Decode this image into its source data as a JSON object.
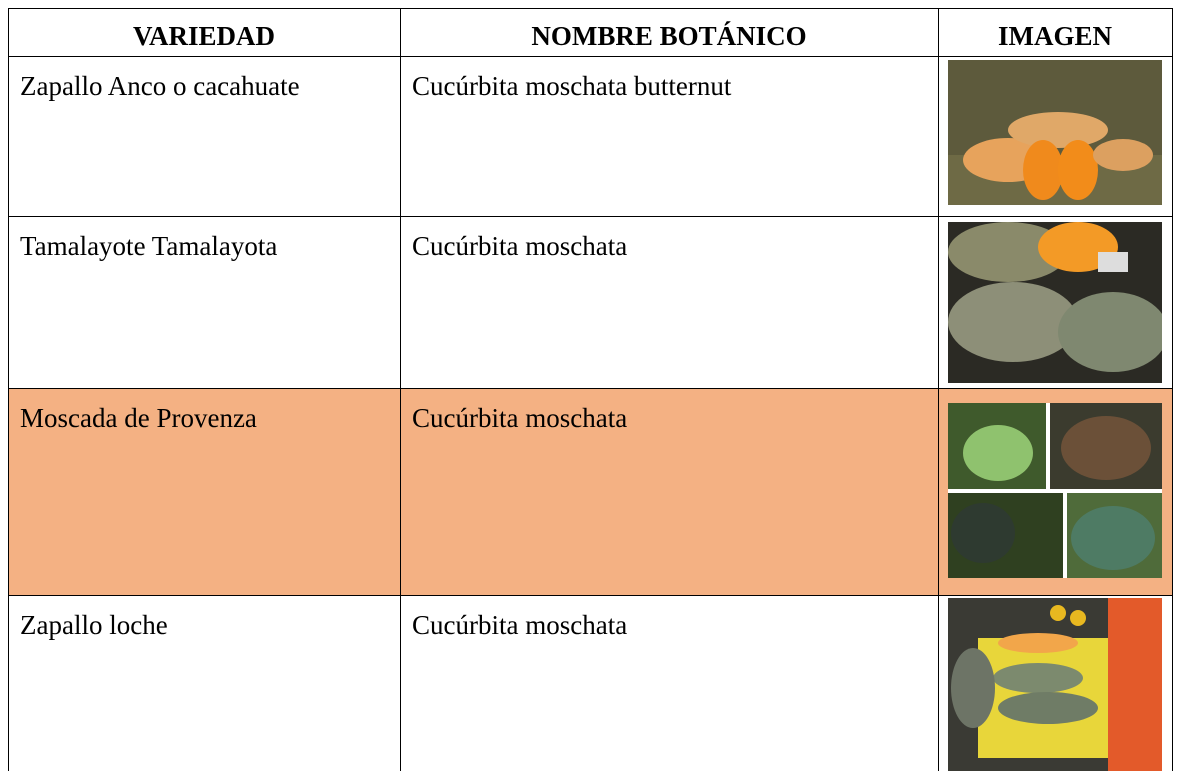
{
  "table": {
    "headers": [
      "VARIEDAD",
      "NOMBRE BOTÁNICO",
      "IMAGEN"
    ],
    "rows": [
      [
        "Zapallo Anco o cacahuate",
        "Cucúrbita moschata butternut"
      ],
      [
        "Tamalayote Tamalayota",
        "Cucúrbita moschata"
      ],
      [
        "Moscada de Provenza",
        "Cucúrbita moschata"
      ],
      [
        "Zapallo loche",
        "Cucúrbita moschata"
      ]
    ]
  }
}
